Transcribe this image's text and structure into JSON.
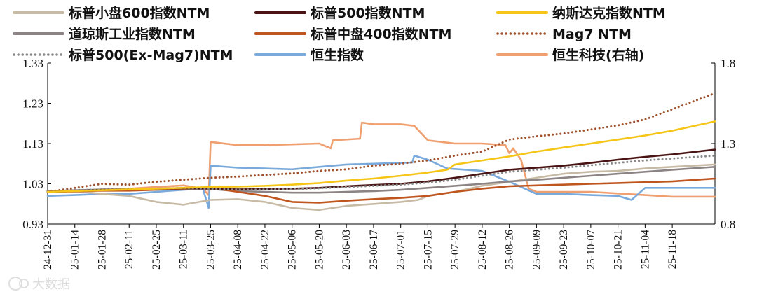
{
  "chart_data": {
    "type": "line",
    "title": "",
    "xlabel": "",
    "ylabel": "",
    "ylim": [
      0.93,
      1.33
    ],
    "y_ticks": [
      "0.93",
      "1.03",
      "1.13",
      "1.23",
      "1.33"
    ],
    "y2lim": [
      0.8,
      1.8
    ],
    "y2_ticks": [
      "0.8",
      "1.3",
      "1.8"
    ],
    "x_start": "2024-12-31",
    "x_end": "2025-12-10",
    "x_ticks": [
      "24-12-31",
      "25-01-14",
      "25-01-28",
      "25-02-11",
      "25-02-25",
      "25-03-11",
      "25-03-25",
      "25-04-08",
      "25-04-22",
      "25-05-06",
      "25-05-20",
      "25-06-03",
      "25-06-17",
      "25-07-01",
      "25-07-15",
      "25-07-29",
      "25-08-12",
      "25-08-26",
      "25-09-09",
      "25-09-23",
      "25-10-07",
      "25-10-21",
      "25-11-04",
      "25-11-18"
    ],
    "legend_position": "top",
    "watermark": "大数据",
    "series": [
      {
        "name": "标普小盘600指数NTM",
        "color": "#c8bba6",
        "style": "solid",
        "axis": "left",
        "points": [
          [
            "2024-12-31",
            1.01
          ],
          [
            "2025-01-14",
            1.012
          ],
          [
            "2025-01-28",
            1.005
          ],
          [
            "2025-02-11",
            1.0
          ],
          [
            "2025-02-25",
            0.985
          ],
          [
            "2025-03-11",
            0.978
          ],
          [
            "2025-03-25",
            0.99
          ],
          [
            "2025-04-08",
            0.992
          ],
          [
            "2025-04-22",
            0.985
          ],
          [
            "2025-05-06",
            0.97
          ],
          [
            "2025-05-20",
            0.965
          ],
          [
            "2025-06-03",
            0.975
          ],
          [
            "2025-06-17",
            0.98
          ],
          [
            "2025-07-01",
            0.985
          ],
          [
            "2025-07-10",
            0.99
          ],
          [
            "2025-07-15",
            1.0
          ],
          [
            "2025-07-29",
            1.01
          ],
          [
            "2025-08-12",
            1.025
          ],
          [
            "2025-08-26",
            1.035
          ],
          [
            "2025-09-09",
            1.045
          ],
          [
            "2025-09-23",
            1.055
          ],
          [
            "2025-10-07",
            1.06
          ],
          [
            "2025-10-21",
            1.062
          ],
          [
            "2025-11-04",
            1.068
          ],
          [
            "2025-11-18",
            1.072
          ],
          [
            "2025-12-10",
            1.078
          ]
        ]
      },
      {
        "name": "标普500指数NTM",
        "color": "#4a1414",
        "style": "solid",
        "axis": "left",
        "points": [
          [
            "2024-12-31",
            1.01
          ],
          [
            "2025-01-14",
            1.012
          ],
          [
            "2025-01-28",
            1.015
          ],
          [
            "2025-02-11",
            1.016
          ],
          [
            "2025-02-25",
            1.018
          ],
          [
            "2025-03-11",
            1.019
          ],
          [
            "2025-03-25",
            1.018
          ],
          [
            "2025-04-08",
            1.016
          ],
          [
            "2025-04-22",
            1.017
          ],
          [
            "2025-05-06",
            1.018
          ],
          [
            "2025-05-20",
            1.02
          ],
          [
            "2025-06-03",
            1.024
          ],
          [
            "2025-06-17",
            1.027
          ],
          [
            "2025-07-01",
            1.03
          ],
          [
            "2025-07-15",
            1.036
          ],
          [
            "2025-07-29",
            1.045
          ],
          [
            "2025-08-12",
            1.055
          ],
          [
            "2025-08-26",
            1.065
          ],
          [
            "2025-09-09",
            1.07
          ],
          [
            "2025-09-23",
            1.075
          ],
          [
            "2025-10-07",
            1.082
          ],
          [
            "2025-10-21",
            1.09
          ],
          [
            "2025-11-04",
            1.097
          ],
          [
            "2025-11-18",
            1.103
          ],
          [
            "2025-12-10",
            1.115
          ]
        ]
      },
      {
        "name": "纳斯达克指数NTM",
        "color": "#f5c518",
        "style": "solid",
        "axis": "left",
        "points": [
          [
            "2024-12-31",
            1.01
          ],
          [
            "2025-01-14",
            1.012
          ],
          [
            "2025-01-28",
            1.014
          ],
          [
            "2025-02-11",
            1.016
          ],
          [
            "2025-02-25",
            1.018
          ],
          [
            "2025-03-11",
            1.02
          ],
          [
            "2025-03-25",
            1.022
          ],
          [
            "2025-04-08",
            1.023
          ],
          [
            "2025-04-22",
            1.025
          ],
          [
            "2025-05-06",
            1.028
          ],
          [
            "2025-05-20",
            1.032
          ],
          [
            "2025-06-03",
            1.038
          ],
          [
            "2025-06-17",
            1.043
          ],
          [
            "2025-07-01",
            1.05
          ],
          [
            "2025-07-15",
            1.058
          ],
          [
            "2025-07-25",
            1.065
          ],
          [
            "2025-07-29",
            1.078
          ],
          [
            "2025-08-12",
            1.088
          ],
          [
            "2025-08-26",
            1.098
          ],
          [
            "2025-09-09",
            1.11
          ],
          [
            "2025-09-23",
            1.12
          ],
          [
            "2025-10-07",
            1.13
          ],
          [
            "2025-10-21",
            1.14
          ],
          [
            "2025-11-04",
            1.15
          ],
          [
            "2025-11-18",
            1.162
          ],
          [
            "2025-12-10",
            1.185
          ]
        ]
      },
      {
        "name": "道琼斯工业指数NTM",
        "color": "#8c8484",
        "style": "solid",
        "axis": "left",
        "points": [
          [
            "2024-12-31",
            1.012
          ],
          [
            "2025-01-14",
            1.014
          ],
          [
            "2025-01-28",
            1.016
          ],
          [
            "2025-02-11",
            1.016
          ],
          [
            "2025-02-25",
            1.017
          ],
          [
            "2025-03-11",
            1.018
          ],
          [
            "2025-03-25",
            1.017
          ],
          [
            "2025-04-08",
            1.012
          ],
          [
            "2025-04-22",
            1.01
          ],
          [
            "2025-05-06",
            1.008
          ],
          [
            "2025-05-20",
            1.008
          ],
          [
            "2025-06-03",
            1.01
          ],
          [
            "2025-06-17",
            1.012
          ],
          [
            "2025-07-01",
            1.015
          ],
          [
            "2025-07-15",
            1.02
          ],
          [
            "2025-07-29",
            1.025
          ],
          [
            "2025-08-12",
            1.03
          ],
          [
            "2025-08-26",
            1.036
          ],
          [
            "2025-09-09",
            1.04
          ],
          [
            "2025-09-23",
            1.045
          ],
          [
            "2025-10-07",
            1.05
          ],
          [
            "2025-10-21",
            1.055
          ],
          [
            "2025-11-04",
            1.06
          ],
          [
            "2025-11-18",
            1.065
          ],
          [
            "2025-12-10",
            1.072
          ]
        ]
      },
      {
        "name": "标普中盘400指数NTM",
        "color": "#c0561f",
        "style": "solid",
        "axis": "left",
        "points": [
          [
            "2024-12-31",
            1.01
          ],
          [
            "2025-01-14",
            1.011
          ],
          [
            "2025-01-28",
            1.013
          ],
          [
            "2025-02-11",
            1.013
          ],
          [
            "2025-02-25",
            1.015
          ],
          [
            "2025-03-11",
            1.018
          ],
          [
            "2025-03-25",
            1.02
          ],
          [
            "2025-04-08",
            1.01
          ],
          [
            "2025-04-22",
            1.0
          ],
          [
            "2025-05-06",
            0.985
          ],
          [
            "2025-05-20",
            0.983
          ],
          [
            "2025-06-03",
            0.988
          ],
          [
            "2025-06-17",
            0.992
          ],
          [
            "2025-07-01",
            0.995
          ],
          [
            "2025-07-15",
            1.0
          ],
          [
            "2025-07-29",
            1.01
          ],
          [
            "2025-08-12",
            1.018
          ],
          [
            "2025-08-26",
            1.024
          ],
          [
            "2025-09-09",
            1.026
          ],
          [
            "2025-09-23",
            1.028
          ],
          [
            "2025-10-07",
            1.03
          ],
          [
            "2025-10-21",
            1.032
          ],
          [
            "2025-11-04",
            1.034
          ],
          [
            "2025-11-18",
            1.036
          ],
          [
            "2025-12-10",
            1.043
          ]
        ]
      },
      {
        "name": "Mag7 NTM",
        "color": "#a0522d",
        "style": "dotted",
        "axis": "left",
        "points": [
          [
            "2024-12-31",
            1.01
          ],
          [
            "2025-01-14",
            1.02
          ],
          [
            "2025-01-28",
            1.03
          ],
          [
            "2025-02-11",
            1.028
          ],
          [
            "2025-02-25",
            1.035
          ],
          [
            "2025-03-11",
            1.04
          ],
          [
            "2025-03-25",
            1.045
          ],
          [
            "2025-04-08",
            1.048
          ],
          [
            "2025-04-22",
            1.052
          ],
          [
            "2025-05-06",
            1.056
          ],
          [
            "2025-05-20",
            1.062
          ],
          [
            "2025-06-03",
            1.066
          ],
          [
            "2025-06-17",
            1.075
          ],
          [
            "2025-07-01",
            1.08
          ],
          [
            "2025-07-15",
            1.088
          ],
          [
            "2025-07-29",
            1.1
          ],
          [
            "2025-08-12",
            1.11
          ],
          [
            "2025-08-26",
            1.14
          ],
          [
            "2025-09-09",
            1.148
          ],
          [
            "2025-09-23",
            1.155
          ],
          [
            "2025-10-07",
            1.165
          ],
          [
            "2025-10-21",
            1.175
          ],
          [
            "2025-11-04",
            1.19
          ],
          [
            "2025-11-18",
            1.215
          ],
          [
            "2025-12-10",
            1.255
          ]
        ]
      },
      {
        "name": "标普500(Ex-Mag7)NTM",
        "color": "#8a8a8a",
        "style": "dotted",
        "axis": "left",
        "points": [
          [
            "2024-12-31",
            1.012
          ],
          [
            "2025-01-14",
            1.015
          ],
          [
            "2025-01-28",
            1.015
          ],
          [
            "2025-02-11",
            1.017
          ],
          [
            "2025-02-25",
            1.018
          ],
          [
            "2025-03-11",
            1.02
          ],
          [
            "2025-03-25",
            1.018
          ],
          [
            "2025-04-08",
            1.015
          ],
          [
            "2025-04-22",
            1.016
          ],
          [
            "2025-05-06",
            1.017
          ],
          [
            "2025-05-20",
            1.019
          ],
          [
            "2025-06-03",
            1.022
          ],
          [
            "2025-06-17",
            1.025
          ],
          [
            "2025-07-01",
            1.028
          ],
          [
            "2025-07-15",
            1.033
          ],
          [
            "2025-07-29",
            1.04
          ],
          [
            "2025-08-12",
            1.05
          ],
          [
            "2025-08-26",
            1.06
          ],
          [
            "2025-09-09",
            1.065
          ],
          [
            "2025-09-23",
            1.07
          ],
          [
            "2025-10-07",
            1.076
          ],
          [
            "2025-10-21",
            1.082
          ],
          [
            "2025-11-04",
            1.088
          ],
          [
            "2025-11-18",
            1.093
          ],
          [
            "2025-12-10",
            1.1
          ]
        ]
      },
      {
        "name": "恒生指数",
        "color": "#7aaadc",
        "style": "solid",
        "axis": "left",
        "points": [
          [
            "2024-12-31",
            1.0
          ],
          [
            "2025-01-14",
            1.002
          ],
          [
            "2025-01-28",
            1.005
          ],
          [
            "2025-02-11",
            1.005
          ],
          [
            "2025-02-25",
            1.01
          ],
          [
            "2025-03-11",
            1.015
          ],
          [
            "2025-03-21",
            1.018
          ],
          [
            "2025-03-24",
            0.97
          ],
          [
            "2025-03-25",
            1.075
          ],
          [
            "2025-04-08",
            1.07
          ],
          [
            "2025-04-22",
            1.068
          ],
          [
            "2025-05-06",
            1.066
          ],
          [
            "2025-05-20",
            1.072
          ],
          [
            "2025-06-03",
            1.078
          ],
          [
            "2025-06-17",
            1.08
          ],
          [
            "2025-07-01",
            1.082
          ],
          [
            "2025-07-07",
            1.083
          ],
          [
            "2025-07-08",
            1.1
          ],
          [
            "2025-07-15",
            1.09
          ],
          [
            "2025-07-25",
            1.068
          ],
          [
            "2025-08-12",
            1.062
          ],
          [
            "2025-08-26",
            1.035
          ],
          [
            "2025-09-09",
            1.005
          ],
          [
            "2025-09-23",
            1.005
          ],
          [
            "2025-10-07",
            1.002
          ],
          [
            "2025-10-21",
            1.0
          ],
          [
            "2025-10-28",
            0.99
          ],
          [
            "2025-11-04",
            1.02
          ],
          [
            "2025-11-18",
            1.02
          ],
          [
            "2025-12-10",
            1.02
          ]
        ]
      },
      {
        "name": "恒生科技(右轴)",
        "color": "#f0a070",
        "style": "solid",
        "axis": "right",
        "points": [
          [
            "2024-12-31",
            1.005
          ],
          [
            "2025-01-14",
            1.005
          ],
          [
            "2025-01-28",
            1.01
          ],
          [
            "2025-02-11",
            1.02
          ],
          [
            "2025-02-25",
            1.03
          ],
          [
            "2025-03-11",
            1.04
          ],
          [
            "2025-03-21",
            1.02
          ],
          [
            "2025-03-24",
            0.98
          ],
          [
            "2025-03-25",
            1.31
          ],
          [
            "2025-04-08",
            1.29
          ],
          [
            "2025-04-22",
            1.29
          ],
          [
            "2025-05-06",
            1.295
          ],
          [
            "2025-05-20",
            1.3
          ],
          [
            "2025-05-26",
            1.27
          ],
          [
            "2025-05-27",
            1.32
          ],
          [
            "2025-06-10",
            1.33
          ],
          [
            "2025-06-11",
            1.43
          ],
          [
            "2025-06-17",
            1.42
          ],
          [
            "2025-07-01",
            1.42
          ],
          [
            "2025-07-08",
            1.41
          ],
          [
            "2025-07-15",
            1.32
          ],
          [
            "2025-07-29",
            1.3
          ],
          [
            "2025-08-12",
            1.3
          ],
          [
            "2025-08-24",
            1.29
          ],
          [
            "2025-08-26",
            1.24
          ],
          [
            "2025-08-28",
            1.27
          ],
          [
            "2025-09-01",
            1.2
          ],
          [
            "2025-09-05",
            1.02
          ],
          [
            "2025-09-09",
            1.0
          ],
          [
            "2025-09-23",
            1.0
          ],
          [
            "2025-10-07",
            1.0
          ],
          [
            "2025-10-21",
            0.99
          ],
          [
            "2025-11-04",
            0.98
          ],
          [
            "2025-11-18",
            0.97
          ],
          [
            "2025-12-10",
            0.97
          ]
        ]
      }
    ]
  }
}
